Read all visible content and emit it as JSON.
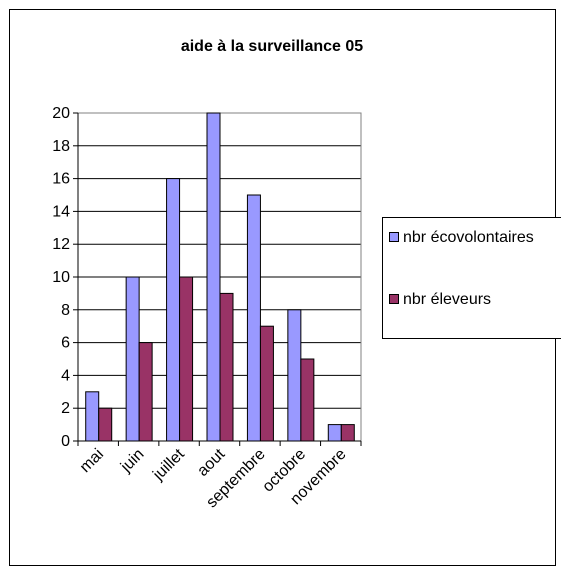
{
  "chart_data": {
    "type": "bar",
    "title": "aide à la surveillance 05",
    "categories": [
      "mai",
      "juin",
      "juillet",
      "aout",
      "septembre",
      "octobre",
      "novembre"
    ],
    "series": [
      {
        "name": "nbr écovolontaires",
        "values": [
          3,
          10,
          16,
          20,
          15,
          8,
          1
        ],
        "color": "#9999ff"
      },
      {
        "name": "nbr éleveurs",
        "values": [
          2,
          6,
          10,
          9,
          7,
          5,
          1
        ],
        "color": "#993366"
      }
    ],
    "ylim": [
      0,
      20
    ],
    "yticks": [
      0,
      2,
      4,
      6,
      8,
      10,
      12,
      14,
      16,
      18,
      20
    ],
    "grid": true,
    "legend_position": "right"
  }
}
